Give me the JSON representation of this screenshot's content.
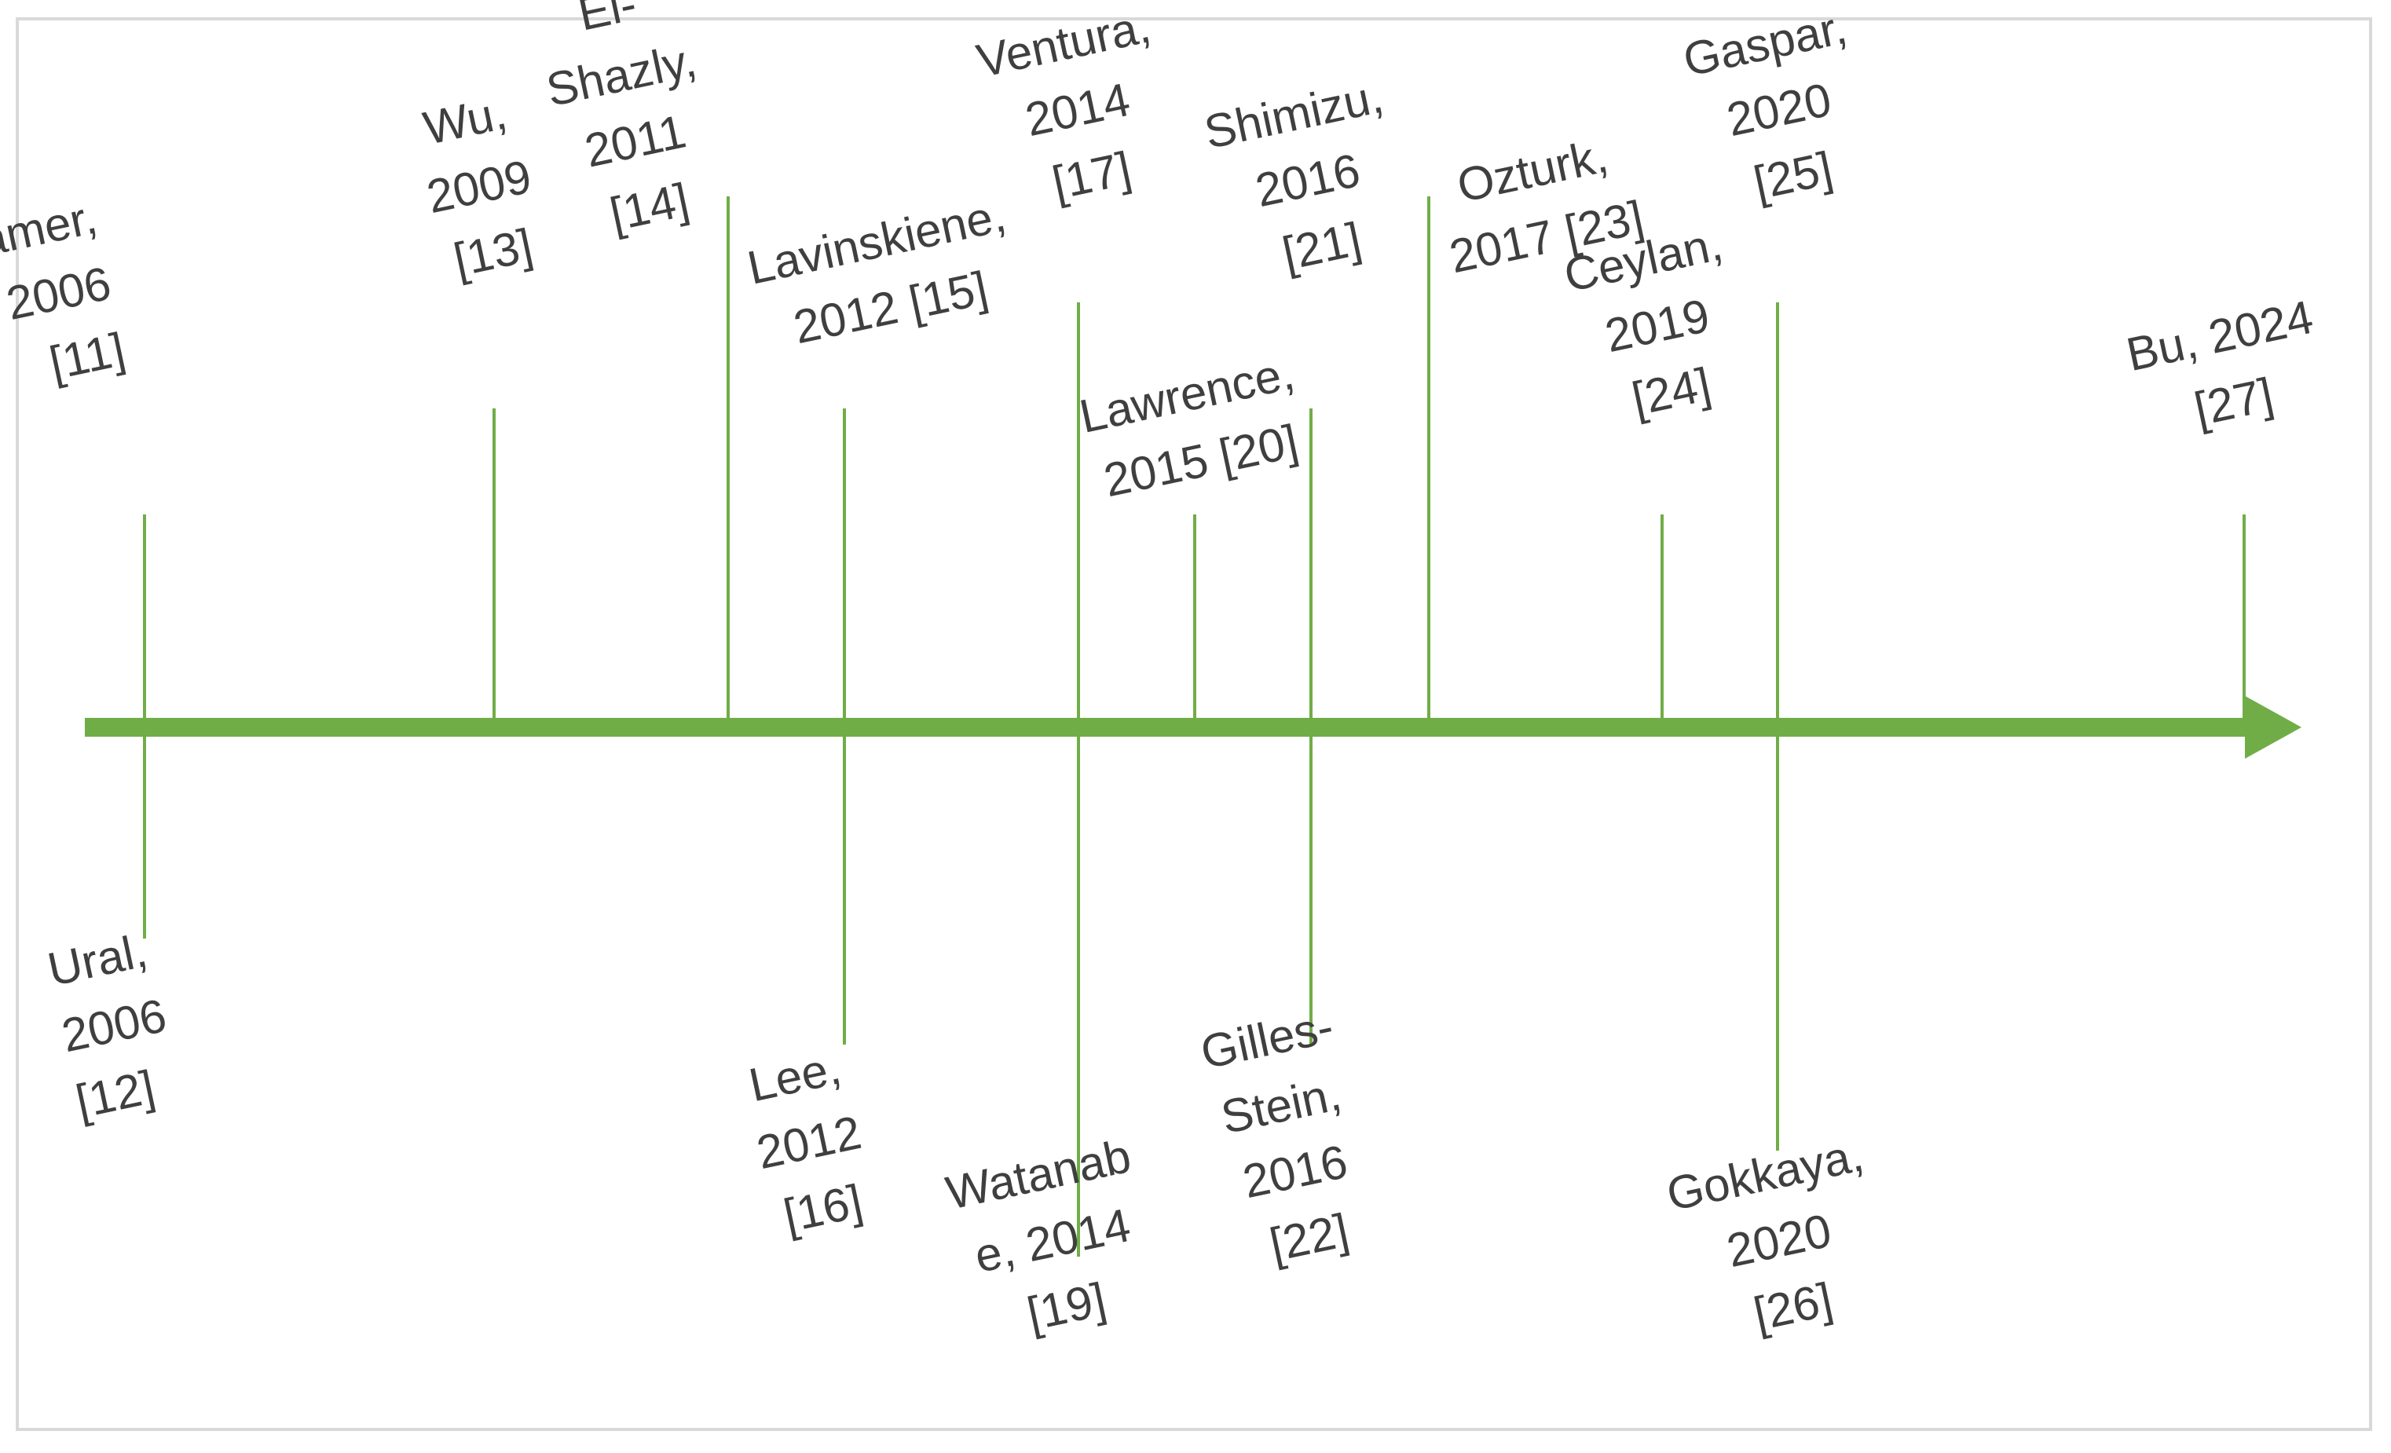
{
  "timeline": {
    "axis_color": "#70ad47",
    "text_color": "#3f3f3f",
    "events": [
      {
        "id": "kramer",
        "lines": [
          "Kramer,",
          "2006",
          "[11]"
        ],
        "side": "above"
      },
      {
        "id": "ural",
        "lines": [
          "Ural,",
          "2006",
          "[12]"
        ],
        "side": "below"
      },
      {
        "id": "wu",
        "lines": [
          "Wu,",
          "2009",
          "[13]"
        ],
        "side": "above"
      },
      {
        "id": "el-shazly",
        "lines": [
          "El-",
          "Shazly,",
          "2011",
          "[14]"
        ],
        "side": "above"
      },
      {
        "id": "lavinskiene",
        "lines": [
          "Lavinskiene,",
          "2012 [15]"
        ],
        "side": "above"
      },
      {
        "id": "lee",
        "lines": [
          "Lee,",
          "2012",
          "[16]"
        ],
        "side": "below"
      },
      {
        "id": "ventura",
        "lines": [
          "Ventura,",
          "2014",
          "[17]"
        ],
        "side": "above"
      },
      {
        "id": "watanabe",
        "lines": [
          "Watanab",
          "e, 2014",
          "[19]"
        ],
        "side": "below"
      },
      {
        "id": "lawrence",
        "lines": [
          "Lawrence,",
          "2015 [20]"
        ],
        "side": "above"
      },
      {
        "id": "shimizu",
        "lines": [
          "Shimizu,",
          "2016",
          "[21]"
        ],
        "side": "above"
      },
      {
        "id": "gilles-stein",
        "lines": [
          "Gilles-",
          "Stein,",
          "2016",
          "[22]"
        ],
        "side": "below"
      },
      {
        "id": "ozturk",
        "lines": [
          "Ozturk,",
          "2017 [23]"
        ],
        "side": "above"
      },
      {
        "id": "ceylan",
        "lines": [
          "Ceylan,",
          "2019",
          "[24]"
        ],
        "side": "above"
      },
      {
        "id": "gaspar",
        "lines": [
          "Gaspar,",
          "2020",
          "[25]"
        ],
        "side": "above"
      },
      {
        "id": "gokkaya",
        "lines": [
          "Gokkaya,",
          "2020",
          "[26]"
        ],
        "side": "below"
      },
      {
        "id": "bu",
        "lines": [
          "Bu, 2024",
          "[27]"
        ],
        "side": "above"
      }
    ]
  }
}
